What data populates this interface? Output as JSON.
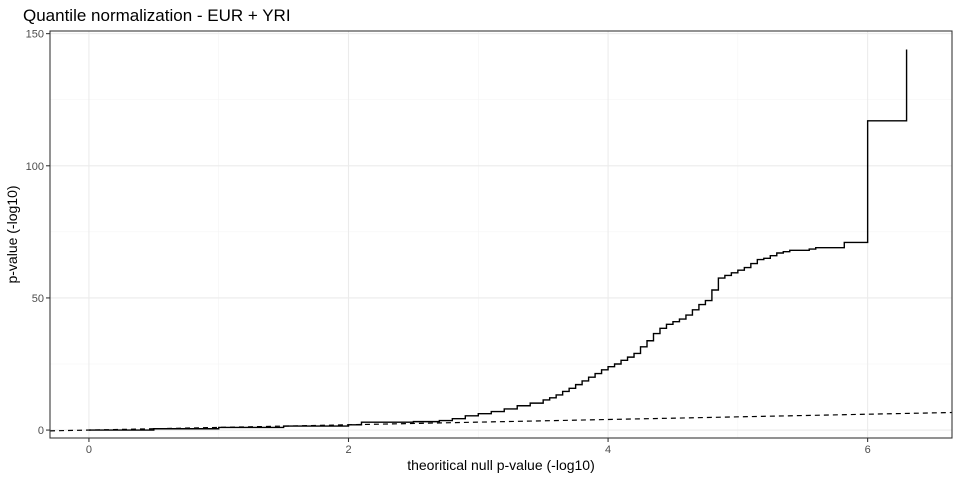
{
  "chart_data": {
    "type": "line",
    "title": "Quantile normalization - EUR + YRI",
    "xlabel": "theoritical null p-value (-log10)",
    "ylabel": "p-value (-log10)",
    "xlim": [
      -0.3,
      6.65
    ],
    "ylim": [
      -3,
      151
    ],
    "x_ticks": [
      0,
      2,
      4,
      6
    ],
    "y_ticks": [
      0,
      50,
      100,
      150
    ],
    "x_minor": [
      1,
      3,
      5
    ],
    "y_minor": [
      25,
      75,
      125
    ],
    "grid": true,
    "legend": "none",
    "series": [
      {
        "style": "solid-step",
        "color": "#000000",
        "x": [
          0,
          0.5,
          1.0,
          1.5,
          2.0,
          2.1,
          2.5,
          2.7,
          2.8,
          2.9,
          3.0,
          3.1,
          3.2,
          3.3,
          3.4,
          3.5,
          3.55,
          3.6,
          3.65,
          3.7,
          3.75,
          3.8,
          3.85,
          3.9,
          3.95,
          4.0,
          4.05,
          4.1,
          4.15,
          4.2,
          4.25,
          4.3,
          4.35,
          4.4,
          4.45,
          4.5,
          4.55,
          4.6,
          4.65,
          4.7,
          4.75,
          4.8,
          4.85,
          4.9,
          4.95,
          5.0,
          5.05,
          5.1,
          5.15,
          5.2,
          5.25,
          5.3,
          5.35,
          5.4,
          5.55,
          5.6,
          5.82,
          6.0,
          6.3,
          6.3
        ],
        "y": [
          0,
          0.5,
          1.0,
          1.5,
          2.0,
          3.0,
          3.2,
          3.6,
          4.3,
          5.4,
          6.2,
          7.0,
          8.0,
          9.2,
          10.2,
          11.4,
          12.2,
          13.3,
          14.6,
          15.8,
          17.2,
          18.6,
          20.0,
          21.4,
          22.8,
          24.0,
          25.0,
          26.4,
          27.6,
          29.0,
          31.5,
          33.8,
          36.5,
          38.5,
          40.0,
          41.0,
          42.0,
          43.5,
          45.5,
          47.5,
          49.0,
          53.0,
          57.5,
          58.5,
          59.5,
          60.5,
          61.5,
          63.0,
          64.5,
          65.0,
          66.0,
          67.0,
          67.5,
          68.0,
          68.5,
          69.0,
          71.0,
          117.0,
          117.0,
          144.0
        ]
      },
      {
        "style": "dashed-line",
        "color": "#000000",
        "x": [
          -0.3,
          6.65
        ],
        "y": [
          -0.3,
          6.65
        ]
      }
    ]
  }
}
